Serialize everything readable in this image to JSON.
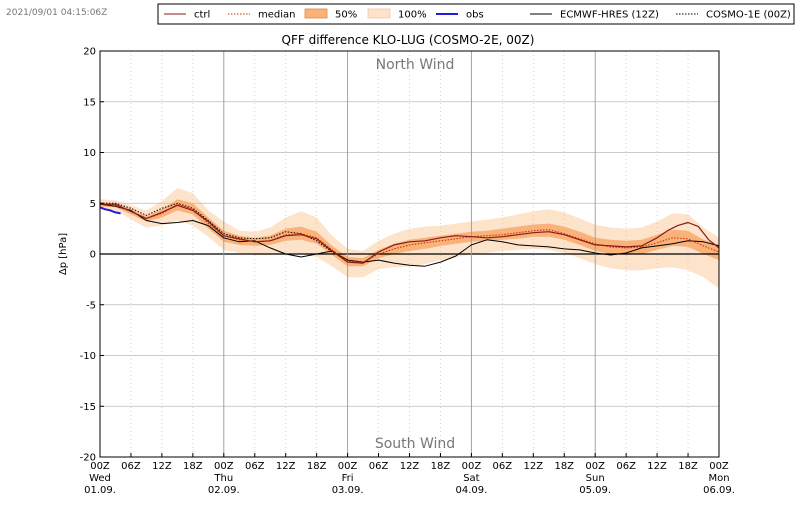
{
  "timestamp": "2021/09/01 04:15:06Z",
  "chart_data": {
    "type": "line",
    "title": "QFF difference KLO-LUG (COSMO-2E, 00Z)",
    "ylabel": "Δp [hPa]",
    "xlabel": "",
    "ylim": [
      -20,
      20
    ],
    "xlim": [
      0,
      120
    ],
    "x_unit": "hours since 01.09. 00Z",
    "grid": true,
    "legend_position": "top",
    "annotations": {
      "top": "North Wind",
      "bottom": "South Wind"
    },
    "y_ticks": [
      -20,
      -15,
      -10,
      -5,
      0,
      5,
      10,
      15,
      20
    ],
    "x_ticks": [
      {
        "x": 0,
        "lines": [
          "00Z",
          "Wed",
          "01.09."
        ]
      },
      {
        "x": 6,
        "lines": [
          "06Z"
        ]
      },
      {
        "x": 12,
        "lines": [
          "12Z"
        ]
      },
      {
        "x": 18,
        "lines": [
          "18Z"
        ]
      },
      {
        "x": 24,
        "lines": [
          "00Z",
          "Thu",
          "02.09."
        ]
      },
      {
        "x": 30,
        "lines": [
          "06Z"
        ]
      },
      {
        "x": 36,
        "lines": [
          "12Z"
        ]
      },
      {
        "x": 42,
        "lines": [
          "18Z"
        ]
      },
      {
        "x": 48,
        "lines": [
          "00Z",
          "Fri",
          "03.09."
        ]
      },
      {
        "x": 54,
        "lines": [
          "06Z"
        ]
      },
      {
        "x": 60,
        "lines": [
          "12Z"
        ]
      },
      {
        "x": 66,
        "lines": [
          "18Z"
        ]
      },
      {
        "x": 72,
        "lines": [
          "00Z",
          "Sat",
          "04.09."
        ]
      },
      {
        "x": 78,
        "lines": [
          "06Z"
        ]
      },
      {
        "x": 84,
        "lines": [
          "12Z"
        ]
      },
      {
        "x": 90,
        "lines": [
          "18Z"
        ]
      },
      {
        "x": 96,
        "lines": [
          "00Z",
          "Sun",
          "05.09."
        ]
      },
      {
        "x": 102,
        "lines": [
          "06Z"
        ]
      },
      {
        "x": 108,
        "lines": [
          "12Z"
        ]
      },
      {
        "x": 114,
        "lines": [
          "18Z"
        ]
      },
      {
        "x": 120,
        "lines": [
          "00Z",
          "Mon",
          "06.09."
        ]
      }
    ],
    "legend": [
      {
        "key": "ctrl",
        "label": "ctrl",
        "color": "#8b1a1a",
        "style": "line"
      },
      {
        "key": "median",
        "label": "median",
        "color": "#cc3300",
        "style": "dotted"
      },
      {
        "key": "p50",
        "label": "50%",
        "color": "#f9b27a",
        "style": "band"
      },
      {
        "key": "p100",
        "label": "100%",
        "color": "#fde3c9",
        "style": "band"
      },
      {
        "key": "obs",
        "label": "obs",
        "color": "#1f1fd6",
        "style": "thick"
      },
      {
        "key": "ecmwf",
        "label": "ECMWF-HRES (12Z)",
        "color": "#000000",
        "style": "line"
      },
      {
        "key": "cosmo1",
        "label": "COSMO-1E (00Z)",
        "color": "#000000",
        "style": "dotted"
      }
    ],
    "band_x": [
      0,
      3,
      6,
      9,
      12,
      15,
      18,
      21,
      24,
      27,
      30,
      33,
      36,
      39,
      42,
      45,
      48,
      51,
      54,
      57,
      60,
      63,
      66,
      69,
      72,
      75,
      78,
      81,
      84,
      87,
      90,
      93,
      96,
      99,
      102,
      105,
      108,
      111,
      114,
      117,
      120
    ],
    "band100_upper": [
      5.4,
      5.3,
      4.8,
      4.3,
      5.2,
      6.5,
      6.0,
      4.3,
      3.2,
      2.3,
      2.2,
      2.6,
      3.6,
      4.2,
      3.6,
      1.8,
      0.5,
      0.3,
      1.3,
      2.0,
      2.5,
      2.7,
      2.8,
      3.0,
      3.2,
      3.4,
      3.6,
      3.9,
      4.2,
      4.4,
      4.1,
      3.5,
      2.9,
      2.6,
      2.5,
      2.6,
      3.2,
      4.0,
      3.9,
      2.6,
      1.6
    ],
    "band50_upper": [
      5.1,
      5.0,
      4.4,
      3.7,
      4.4,
      5.4,
      5.0,
      3.6,
      2.3,
      1.8,
      1.6,
      1.8,
      2.5,
      2.7,
      2.2,
      0.8,
      -0.3,
      -0.4,
      0.4,
      1.0,
      1.4,
      1.6,
      1.8,
      2.0,
      2.2,
      2.3,
      2.5,
      2.7,
      2.9,
      3.0,
      2.7,
      2.2,
      1.6,
      1.4,
      1.3,
      1.4,
      1.9,
      2.4,
      2.3,
      1.4,
      0.9
    ],
    "band50_lower": [
      4.7,
      4.6,
      3.9,
      3.2,
      3.6,
      4.3,
      3.9,
      2.5,
      1.2,
      0.9,
      0.8,
      0.9,
      1.3,
      1.4,
      1.0,
      -0.1,
      -1.2,
      -1.2,
      -0.4,
      0.0,
      0.3,
      0.5,
      0.8,
      1.0,
      1.2,
      1.3,
      1.4,
      1.5,
      1.7,
      1.7,
      1.4,
      0.9,
      0.3,
      0.0,
      -0.1,
      0.0,
      0.4,
      0.8,
      0.7,
      0.0,
      -0.6
    ],
    "band100_lower": [
      4.4,
      4.3,
      3.4,
      2.6,
      2.8,
      3.3,
      2.8,
      1.7,
      0.4,
      0.1,
      -0.1,
      -0.1,
      0.1,
      0.0,
      -0.3,
      -1.2,
      -2.3,
      -2.3,
      -1.5,
      -1.3,
      -1.2,
      -1.0,
      -0.6,
      -0.3,
      0.0,
      0.1,
      0.3,
      0.4,
      0.5,
      0.4,
      0.1,
      -0.4,
      -1.0,
      -1.4,
      -1.6,
      -1.6,
      -1.4,
      -1.3,
      -1.6,
      -2.3,
      -3.4
    ],
    "series": [
      {
        "key": "ctrl",
        "x": [
          0,
          3,
          6,
          9,
          12,
          15,
          18,
          21,
          24,
          27,
          30,
          33,
          36,
          39,
          42,
          45,
          48,
          51,
          54,
          57,
          60,
          63,
          66,
          69,
          72,
          75,
          78,
          81,
          84,
          87,
          90,
          93,
          96,
          99,
          102,
          105,
          108,
          110,
          112,
          114,
          116,
          118,
          120
        ],
        "y": [
          4.9,
          4.9,
          4.2,
          3.5,
          4.1,
          4.8,
          4.3,
          3.2,
          1.8,
          1.5,
          1.2,
          1.3,
          1.8,
          1.9,
          1.5,
          0.3,
          -0.8,
          -0.9,
          0.2,
          0.9,
          1.2,
          1.3,
          1.6,
          1.8,
          1.7,
          1.6,
          1.7,
          1.9,
          2.1,
          2.2,
          1.9,
          1.4,
          0.9,
          0.8,
          0.7,
          0.8,
          1.6,
          2.3,
          2.8,
          3.1,
          2.7,
          1.4,
          0.6
        ]
      },
      {
        "key": "median",
        "x": [
          0,
          3,
          6,
          9,
          12,
          15,
          18,
          21,
          24,
          27,
          30,
          33,
          36,
          39,
          42,
          45,
          48,
          51,
          54,
          57,
          60,
          63,
          66,
          69,
          72,
          75,
          78,
          81,
          84,
          87,
          90,
          93,
          96,
          99,
          102,
          105,
          108,
          111,
          114,
          117,
          120
        ],
        "y": [
          4.9,
          4.8,
          4.2,
          3.5,
          4.0,
          4.9,
          4.4,
          3.0,
          1.8,
          1.4,
          1.2,
          1.3,
          1.9,
          2.0,
          1.6,
          0.4,
          -0.7,
          -0.8,
          0.0,
          0.5,
          0.9,
          1.1,
          1.3,
          1.5,
          1.7,
          1.8,
          1.9,
          2.1,
          2.3,
          2.4,
          2.0,
          1.5,
          1.0,
          0.7,
          0.6,
          0.7,
          1.1,
          1.6,
          1.5,
          0.8,
          0.2
        ]
      },
      {
        "key": "ecmwf",
        "x": [
          0,
          3,
          6,
          9,
          12,
          15,
          18,
          21,
          24,
          27,
          30,
          33,
          36,
          39,
          42,
          45,
          48,
          51,
          54,
          57,
          60,
          63,
          66,
          69,
          72,
          75,
          78,
          81,
          84,
          87,
          90,
          93,
          96,
          99,
          102,
          105,
          108,
          111,
          114,
          117,
          120
        ],
        "y": [
          4.9,
          4.7,
          4.3,
          3.3,
          3.0,
          3.1,
          3.3,
          2.8,
          1.6,
          1.2,
          1.3,
          0.6,
          0.0,
          -0.3,
          0.0,
          0.3,
          -0.6,
          -0.8,
          -0.6,
          -0.9,
          -1.1,
          -1.2,
          -0.8,
          -0.2,
          0.9,
          1.4,
          1.2,
          0.9,
          0.8,
          0.7,
          0.5,
          0.4,
          0.1,
          -0.1,
          0.1,
          0.6,
          0.8,
          1.0,
          1.3,
          1.2,
          0.8
        ]
      },
      {
        "key": "cosmo1",
        "x": [
          0,
          3,
          6,
          9,
          12,
          15,
          18,
          21,
          24,
          27,
          30,
          33,
          36,
          39,
          42,
          45,
          48
        ],
        "y": [
          5.0,
          5.0,
          4.5,
          3.8,
          4.5,
          5.0,
          4.5,
          3.3,
          2.0,
          1.6,
          1.5,
          1.6,
          2.2,
          2.0,
          1.3,
          0.2,
          -0.6
        ]
      },
      {
        "key": "obs",
        "x": [
          0,
          1,
          2,
          3,
          4
        ],
        "y": [
          4.6,
          4.4,
          4.3,
          4.1,
          4.0
        ]
      }
    ]
  }
}
